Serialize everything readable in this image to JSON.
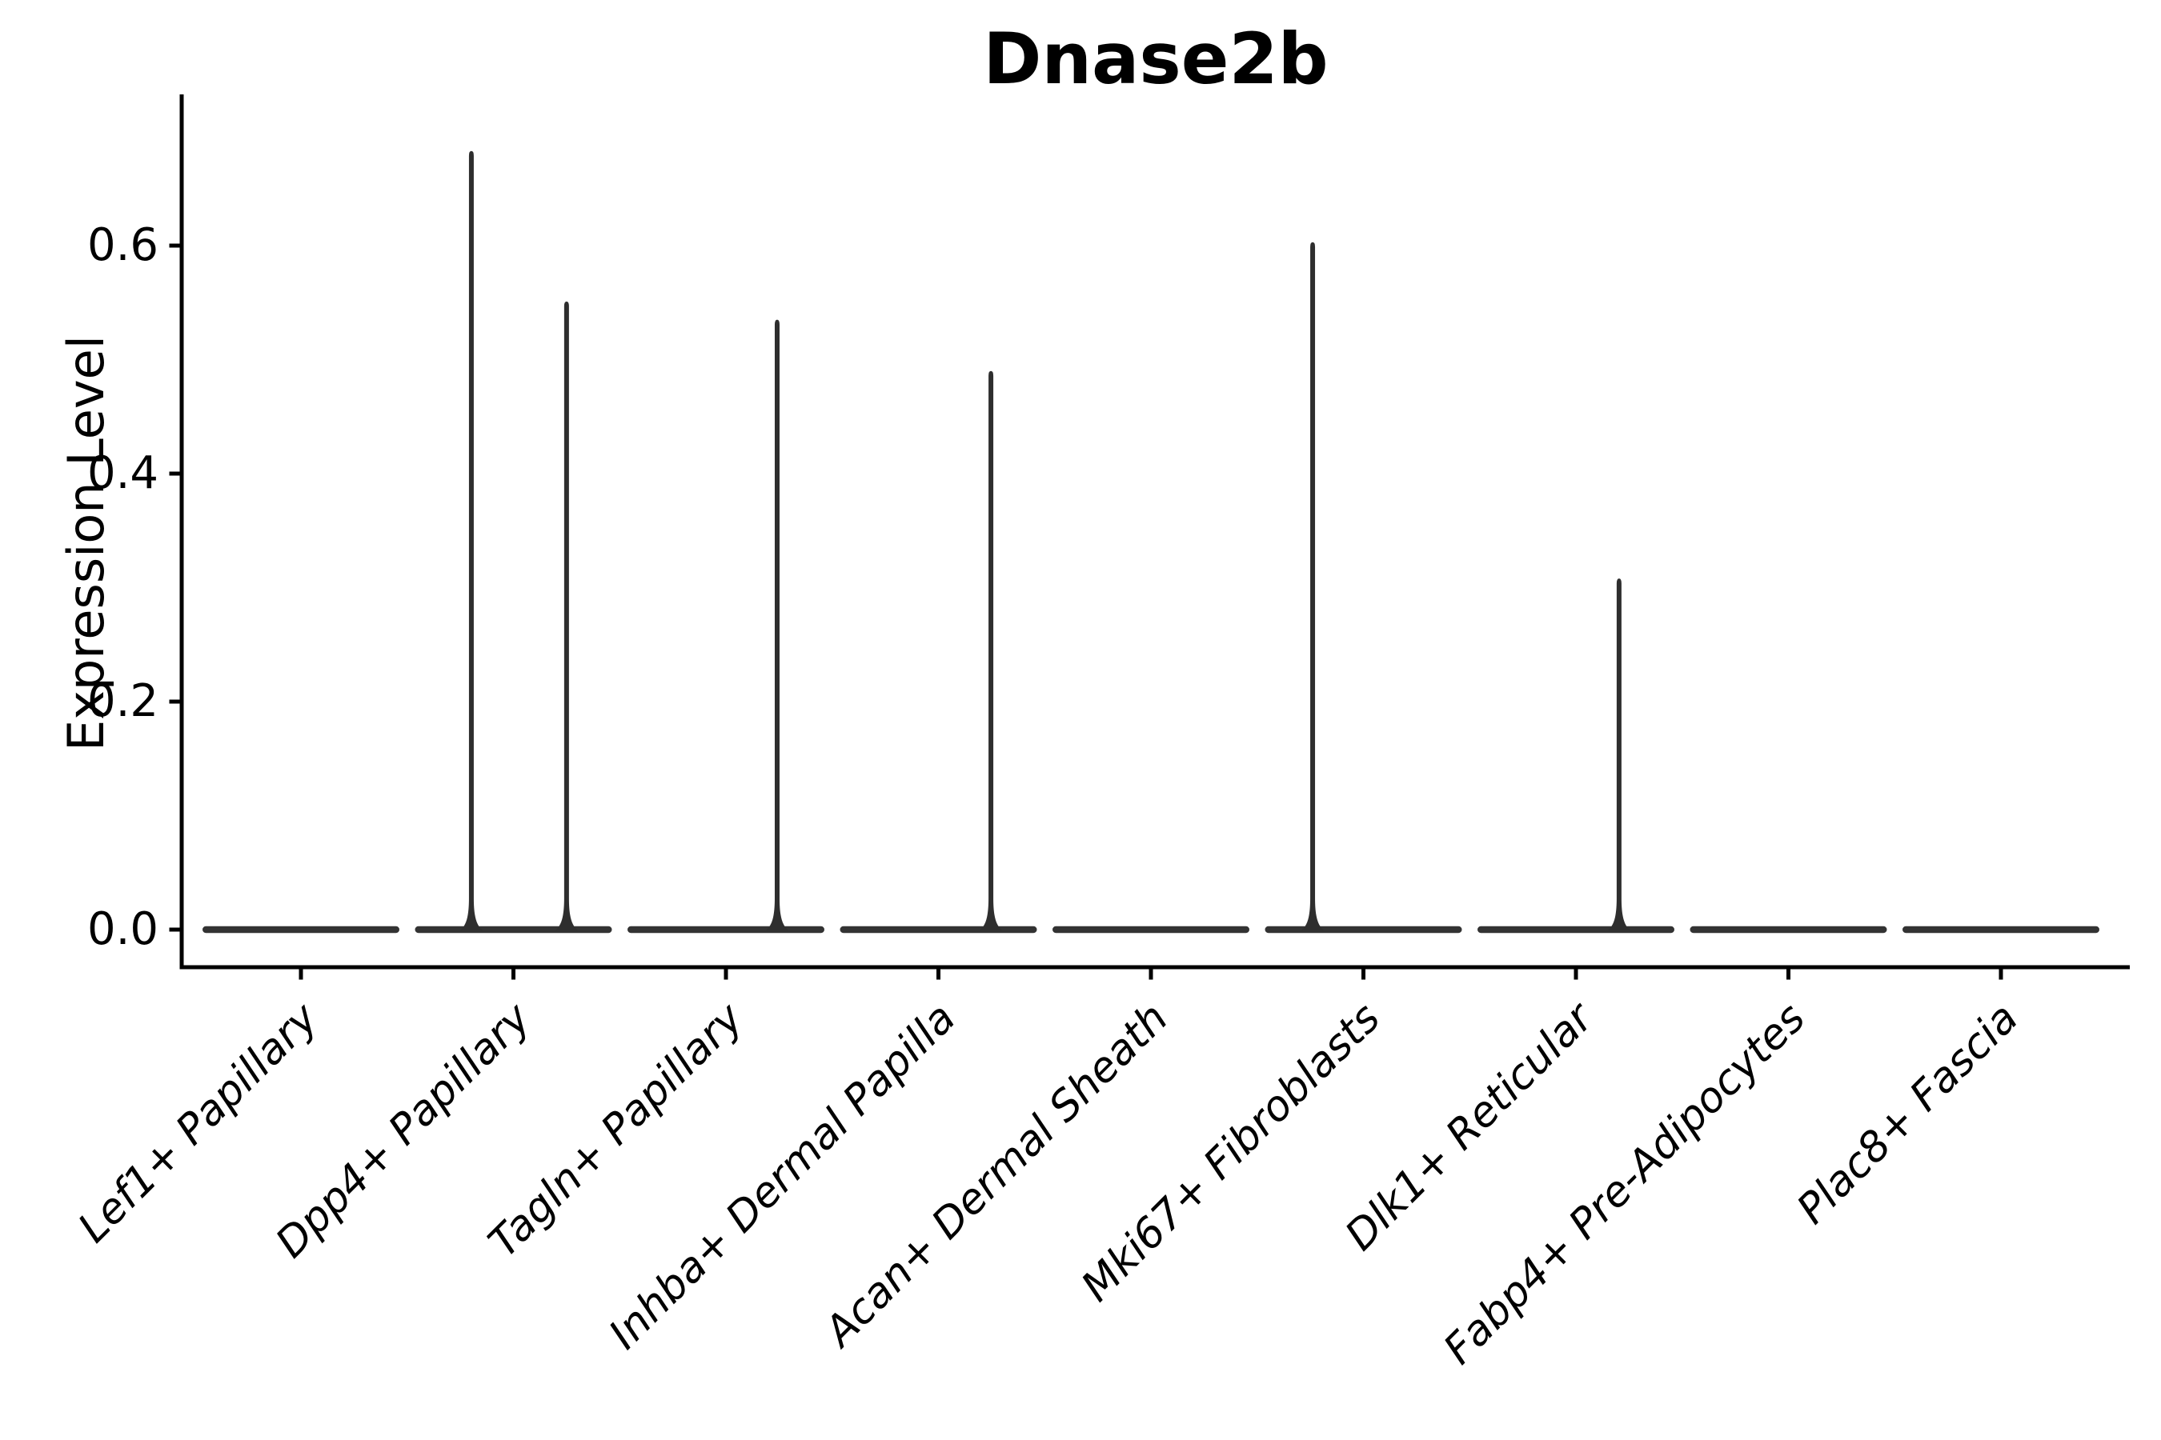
{
  "title": "Dnase2b",
  "ylabel": "Expression Level",
  "style": {
    "background": "#ffffff",
    "axis_color": "#000000",
    "text_color": "#000000",
    "violin_color": "#333333",
    "spike_color": "#2e2e2e"
  },
  "chart_data": {
    "type": "violin",
    "title": "Dnase2b",
    "xlabel": "",
    "ylabel": "Expression Level",
    "ylim": [
      -0.033,
      0.733
    ],
    "yticks": [
      "0.0",
      "0.2",
      "0.4",
      "0.6"
    ],
    "ytick_values": [
      0.0,
      0.2,
      0.4,
      0.6
    ],
    "grid": false,
    "legend": false,
    "x_tick_rotation_deg": 45,
    "categories": [
      "Lef1+ Papillary",
      "Dpp4+ Papillary",
      "Tagln+ Papillary",
      "Inhba+ Dermal Papilla",
      "Acan+ Dermal Sheath",
      "Mki67+ Fibroblasts",
      "Dlk1+ Reticular",
      "Fabp4+ Pre-Adipocytes",
      "Plac8+ Fascia"
    ],
    "series": [
      {
        "name": "Lef1+ Papillary",
        "bulk_value": 0.0,
        "max_expression": 0.0,
        "spikes": []
      },
      {
        "name": "Dpp4+ Papillary",
        "bulk_value": 0.0,
        "max_expression": 0.683,
        "spikes": [
          {
            "value": 0.683,
            "offset_frac": -0.198
          },
          {
            "value": 0.551,
            "offset_frac": 0.25
          }
        ]
      },
      {
        "name": "Tagln+ Papillary",
        "bulk_value": 0.0,
        "max_expression": 0.535,
        "spikes": [
          {
            "value": 0.535,
            "offset_frac": 0.241
          }
        ]
      },
      {
        "name": "Inhba+ Dermal Papilla",
        "bulk_value": 0.0,
        "max_expression": 0.49,
        "spikes": [
          {
            "value": 0.49,
            "offset_frac": 0.247
          }
        ]
      },
      {
        "name": "Acan+ Dermal Sheath",
        "bulk_value": 0.0,
        "max_expression": 0.0,
        "spikes": []
      },
      {
        "name": "Mki67+ Fibroblasts",
        "bulk_value": 0.0,
        "max_expression": 0.603,
        "spikes": [
          {
            "value": 0.603,
            "offset_frac": -0.239
          }
        ]
      },
      {
        "name": "Dlk1+ Reticular",
        "bulk_value": 0.0,
        "max_expression": 0.308,
        "spikes": [
          {
            "value": 0.308,
            "offset_frac": 0.203
          }
        ]
      },
      {
        "name": "Fabp4+ Pre-Adipocytes",
        "bulk_value": 0.0,
        "max_expression": 0.0,
        "spikes": []
      },
      {
        "name": "Plac8+ Fascia",
        "bulk_value": 0.0,
        "max_expression": 0.0,
        "spikes": []
      }
    ]
  }
}
